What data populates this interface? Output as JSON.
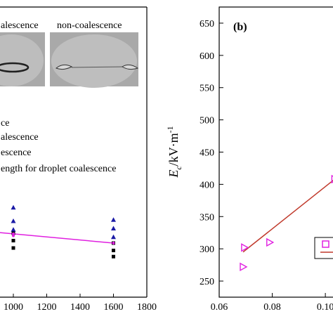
{
  "chart_data": [
    {
      "type": "scatter",
      "panel_label": "",
      "inset_labels": [
        "alescence",
        "non-coalescence"
      ],
      "legend": [
        "ce",
        "alescence",
        "escence",
        "ength for droplet coalescence"
      ],
      "x_ticks": [
        "1000",
        "1200",
        "1400",
        "1600",
        "1800"
      ],
      "xlim": [
        920,
        1800
      ],
      "ylim": [
        0,
        1
      ],
      "series": [
        {
          "marker": "triangle",
          "color": "#1a1aa6",
          "points": [
            [
              1000,
              0.73
            ],
            [
              1000,
              0.62
            ],
            [
              1000,
              0.55
            ],
            [
              1600,
              0.63
            ],
            [
              1600,
              0.56
            ],
            [
              1600,
              0.49
            ]
          ]
        },
        {
          "marker": "square",
          "color": "#000000",
          "points": [
            [
              1000,
              0.52
            ],
            [
              1000,
              0.46
            ],
            [
              1000,
              0.4
            ],
            [
              1600,
              0.44
            ],
            [
              1600,
              0.38
            ],
            [
              1600,
              0.33
            ]
          ]
        },
        {
          "marker": "star",
          "color": "#e020e0",
          "points": [
            [
              1000,
              0.515
            ],
            [
              1000,
              0.5
            ],
            [
              1600,
              0.44
            ]
          ]
        }
      ],
      "fit_line": {
        "color": "#e020e0",
        "points": [
          [
            920,
            0.525
          ],
          [
            1600,
            0.44
          ]
        ]
      }
    },
    {
      "type": "scatter",
      "panel_label": "(b)",
      "ylabel_main": "E",
      "ylabel_sub": "c",
      "ylabel_unit": "/kV·m",
      "ylabel_exp": "-1",
      "xlim": [
        0.06,
        0.105
      ],
      "ylim": [
        225,
        675
      ],
      "x_ticks": [
        "0.06",
        "0.08",
        "0.10"
      ],
      "y_ticks": [
        "250",
        "300",
        "350",
        "400",
        "450",
        "500",
        "550",
        "600",
        "650"
      ],
      "series": [
        {
          "marker": "triangle-right-open",
          "color": "#e020e0",
          "points": [
            [
              0.069,
              272
            ],
            [
              0.0695,
              302
            ],
            [
              0.079,
              310
            ],
            [
              0.1035,
              408
            ]
          ]
        }
      ],
      "fit_line": {
        "color": "#c0392b",
        "points": [
          [
            0.069,
            295
          ],
          [
            0.1035,
            408
          ]
        ]
      },
      "legend_markers": [
        {
          "marker": "square-open",
          "color": "#e020e0"
        },
        {
          "marker": "line",
          "color": "#c0392b"
        }
      ]
    }
  ]
}
